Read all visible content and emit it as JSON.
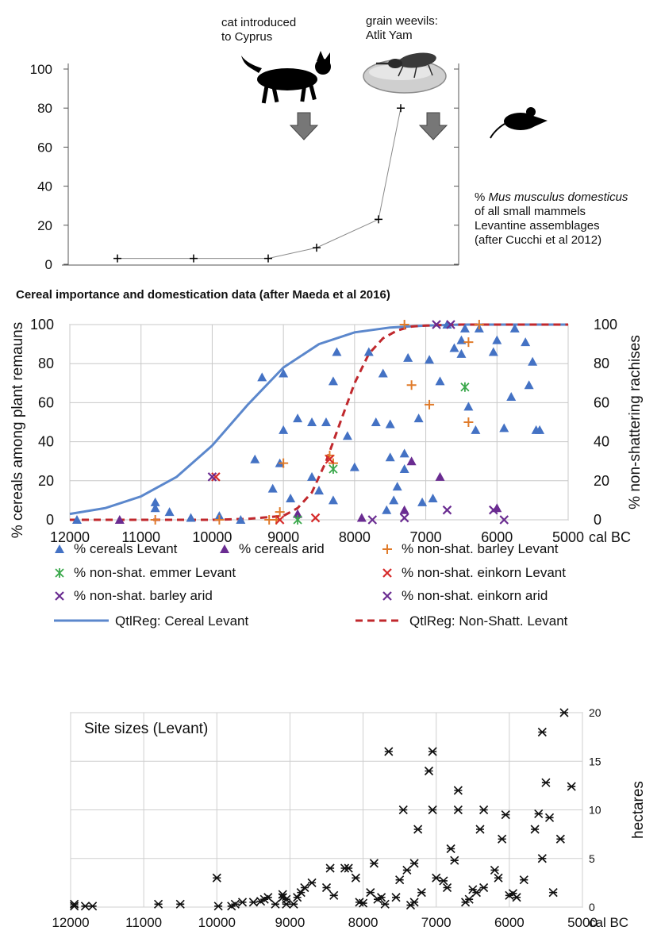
{
  "colors": {
    "levant_blue": "#4472C4",
    "arid_purple": "#6A2C91",
    "barley_orange": "#E07B2A",
    "emmer_green": "#3AA84B",
    "einkorn_red": "#D62A2A",
    "curve_blue": "#5B87CC",
    "curve_red": "#C0282D"
  },
  "panel1": {
    "annotation_cat": "cat introduced\nto Cyprus",
    "annotation_weevil": "grain weevils:\nAtlit Yam",
    "caption_lines": [
      "% Mus musculus domesticus",
      "of all small mammels",
      "Levantine assemblages",
      "(after Cucchi et al 2012)"
    ],
    "caption_italic": "Mus musculus domesticus",
    "icons": [
      "cat-silhouette-icon",
      "grain-weevil-image",
      "mouse-silhouette-icon",
      "down-arrow-icon"
    ]
  },
  "chart_data": [
    {
      "type": "line",
      "title": "",
      "ylabel": "",
      "ylim": [
        0,
        100
      ],
      "yticks": [
        "0",
        "20",
        "40",
        "60",
        "80",
        "100"
      ],
      "series": [
        {
          "x": [
            12000,
            11000,
            10000,
            9000,
            8300,
            7700
          ],
          "values": [
            3,
            3,
            3,
            8.5,
            23,
            80
          ]
        }
      ]
    },
    {
      "type": "scatter",
      "title": "Cereal importance and domestication data (after Maeda et al 2016)",
      "xlabel": "cal BC",
      "ylabel": "% cereals among plant remauns",
      "ylabel_right": "% non-shattering rachises",
      "xlim": [
        12000,
        5000
      ],
      "ylim": [
        0,
        100
      ],
      "xticks": [
        "12000",
        "11000",
        "10000",
        "9000",
        "8000",
        "7000",
        "6000",
        "5000"
      ],
      "yticks": [
        "0",
        "20",
        "40",
        "60",
        "80",
        "100"
      ],
      "legend_position": "bottom",
      "series": [
        {
          "name": "% cereals Levant",
          "points": [
            [
              11900,
              0
            ],
            [
              10800,
              6
            ],
            [
              10800,
              9
            ],
            [
              10600,
              4
            ],
            [
              10300,
              1
            ],
            [
              9900,
              2
            ],
            [
              9600,
              0
            ],
            [
              9400,
              31
            ],
            [
              9300,
              73
            ],
            [
              9150,
              16
            ],
            [
              9000,
              75
            ],
            [
              9000,
              46
            ],
            [
              9050,
              29
            ],
            [
              8900,
              11
            ],
            [
              8800,
              52
            ],
            [
              8600,
              50
            ],
            [
              8600,
              22
            ],
            [
              8500,
              15
            ],
            [
              8400,
              50
            ],
            [
              8300,
              10
            ],
            [
              8300,
              71
            ],
            [
              8250,
              86
            ],
            [
              8100,
              43
            ],
            [
              8000,
              27
            ],
            [
              7800,
              86
            ],
            [
              7700,
              50
            ],
            [
              7600,
              75
            ],
            [
              7550,
              5
            ],
            [
              7500,
              32
            ],
            [
              7500,
              49
            ],
            [
              7450,
              10
            ],
            [
              7400,
              17
            ],
            [
              7300,
              26
            ],
            [
              7300,
              34
            ],
            [
              7250,
              83
            ],
            [
              7100,
              52
            ],
            [
              7050,
              9
            ],
            [
              6950,
              82
            ],
            [
              6900,
              11
            ],
            [
              6800,
              71
            ],
            [
              6700,
              100
            ],
            [
              6600,
              88
            ],
            [
              6500,
              92
            ],
            [
              6500,
              85
            ],
            [
              6450,
              98
            ],
            [
              6400,
              58
            ],
            [
              6300,
              46
            ],
            [
              6250,
              98
            ],
            [
              6050,
              86
            ],
            [
              6000,
              92
            ],
            [
              5900,
              47
            ],
            [
              5800,
              63
            ],
            [
              5750,
              98
            ],
            [
              5600,
              91
            ],
            [
              5550,
              69
            ],
            [
              5500,
              81
            ],
            [
              5450,
              46
            ],
            [
              5400,
              46
            ]
          ]
        },
        {
          "name": "% cereals arid",
          "points": [
            [
              11300,
              0
            ],
            [
              8800,
              3
            ],
            [
              7900,
              1
            ],
            [
              7300,
              5
            ],
            [
              7200,
              30
            ],
            [
              6800,
              22
            ],
            [
              6000,
              6
            ]
          ]
        },
        {
          "name": "% non-shat. barley Levant",
          "points": [
            [
              10800,
              0
            ],
            [
              9900,
              0
            ],
            [
              9200,
              0
            ],
            [
              9100,
              0
            ],
            [
              9050,
              4
            ],
            [
              9000,
              29
            ],
            [
              8300,
              29
            ],
            [
              8350,
              33
            ],
            [
              7300,
              100
            ],
            [
              7200,
              69
            ],
            [
              6950,
              59
            ],
            [
              6400,
              50
            ],
            [
              6400,
              91
            ],
            [
              6250,
              100
            ]
          ]
        },
        {
          "name": "% non-shat. emmer Levant",
          "points": [
            [
              8800,
              0
            ],
            [
              8300,
              26
            ],
            [
              6450,
              68
            ]
          ]
        },
        {
          "name": "% non-shat. einkorn Levant",
          "points": [
            [
              9950,
              22
            ],
            [
              9050,
              0
            ],
            [
              8550,
              1
            ],
            [
              8350,
              31
            ]
          ]
        },
        {
          "name": "% non-shat. barley arid",
          "points": [
            [
              7750,
              0
            ],
            [
              7300,
              1
            ],
            [
              6700,
              5
            ],
            [
              6650,
              100
            ]
          ]
        },
        {
          "name": "% non-shat. einkorn arid",
          "points": [
            [
              10000,
              22
            ],
            [
              6850,
              100
            ],
            [
              6050,
              5
            ],
            [
              5900,
              0
            ]
          ]
        },
        {
          "name": "QtlReg: Cereal Levant",
          "curve": "logistic",
          "x": [
            12000,
            11500,
            11000,
            10500,
            10000,
            9500,
            9000,
            8500,
            8000,
            7500,
            7000,
            6500,
            6000,
            5500,
            5000
          ],
          "values": [
            3,
            6,
            12,
            22,
            38,
            59,
            78,
            90,
            96,
            98.5,
            99.5,
            100,
            100,
            100,
            100
          ]
        },
        {
          "name": "QtlReg: Non-Shatt. Levant",
          "curve": "logistic",
          "x": [
            12000,
            11000,
            10000,
            9500,
            9000,
            8800,
            8600,
            8400,
            8200,
            8000,
            7800,
            7600,
            7400,
            7200,
            7000,
            6500,
            6000,
            5000
          ],
          "values": [
            0,
            0,
            0,
            0.5,
            2,
            6,
            14,
            30,
            50,
            70,
            85,
            93,
            97,
            99,
            99.5,
            100,
            100,
            100
          ]
        }
      ]
    },
    {
      "type": "scatter",
      "title": "Site sizes (Levant)",
      "xlabel": "cal BC",
      "ylabel": "hectares",
      "xlim": [
        12000,
        5000
      ],
      "ylim": [
        0,
        20
      ],
      "xticks": [
        "12000",
        "11000",
        "10000",
        "9000",
        "8000",
        "7000",
        "6000",
        "5000"
      ],
      "yticks": [
        "0",
        "5",
        "10",
        "15",
        "20"
      ],
      "points": [
        [
          11950,
          0.3
        ],
        [
          11950,
          0.1
        ],
        [
          11800,
          0.1
        ],
        [
          11700,
          0.1
        ],
        [
          10800,
          0.3
        ],
        [
          10500,
          0.3
        ],
        [
          9980,
          0.1
        ],
        [
          10000,
          3.0
        ],
        [
          9800,
          0.1
        ],
        [
          9750,
          0.3
        ],
        [
          9650,
          0.5
        ],
        [
          9500,
          0.5
        ],
        [
          9400,
          0.6
        ],
        [
          9350,
          0.8
        ],
        [
          9300,
          1.0
        ],
        [
          9200,
          0.3
        ],
        [
          9100,
          1.3
        ],
        [
          9100,
          1.0
        ],
        [
          9050,
          0.8
        ],
        [
          9050,
          0.3
        ],
        [
          8950,
          0.3
        ],
        [
          8900,
          1.0
        ],
        [
          8850,
          1.5
        ],
        [
          8800,
          2.0
        ],
        [
          8700,
          2.5
        ],
        [
          8500,
          2.0
        ],
        [
          8450,
          4.0
        ],
        [
          8400,
          1.2
        ],
        [
          8250,
          4.0
        ],
        [
          8200,
          4.0
        ],
        [
          8100,
          3.0
        ],
        [
          8050,
          0.5
        ],
        [
          8000,
          0.4
        ],
        [
          7900,
          1.5
        ],
        [
          7850,
          4.5
        ],
        [
          7800,
          0.8
        ],
        [
          7750,
          1.0
        ],
        [
          7700,
          0.3
        ],
        [
          7650,
          16.0
        ],
        [
          7550,
          1.0
        ],
        [
          7500,
          2.8
        ],
        [
          7450,
          10.0
        ],
        [
          7400,
          3.8
        ],
        [
          7350,
          0.2
        ],
        [
          7300,
          4.5
        ],
        [
          7300,
          0.5
        ],
        [
          7250,
          8.0
        ],
        [
          7200,
          1.5
        ],
        [
          7100,
          14.0
        ],
        [
          7050,
          16.0
        ],
        [
          7050,
          10.0
        ],
        [
          7000,
          3.0
        ],
        [
          6900,
          2.7
        ],
        [
          6850,
          2.0
        ],
        [
          6800,
          6.0
        ],
        [
          6750,
          4.8
        ],
        [
          6700,
          10.0
        ],
        [
          6700,
          12.0
        ],
        [
          6600,
          0.5
        ],
        [
          6550,
          0.8
        ],
        [
          6500,
          1.8
        ],
        [
          6450,
          1.5
        ],
        [
          6400,
          8.0
        ],
        [
          6350,
          10.0
        ],
        [
          6350,
          2.0
        ],
        [
          6200,
          3.8
        ],
        [
          6150,
          3.0
        ],
        [
          6100,
          7.0
        ],
        [
          6050,
          9.5
        ],
        [
          6000,
          1.2
        ],
        [
          5950,
          1.4
        ],
        [
          5900,
          1.0
        ],
        [
          5800,
          2.8
        ],
        [
          5650,
          8.0
        ],
        [
          5600,
          9.6
        ],
        [
          5550,
          18.0
        ],
        [
          5550,
          5.0
        ],
        [
          5500,
          12.8
        ],
        [
          5450,
          9.2
        ],
        [
          5400,
          1.5
        ],
        [
          5300,
          7.0
        ],
        [
          5250,
          20.0
        ],
        [
          5150,
          12.4
        ]
      ]
    }
  ]
}
